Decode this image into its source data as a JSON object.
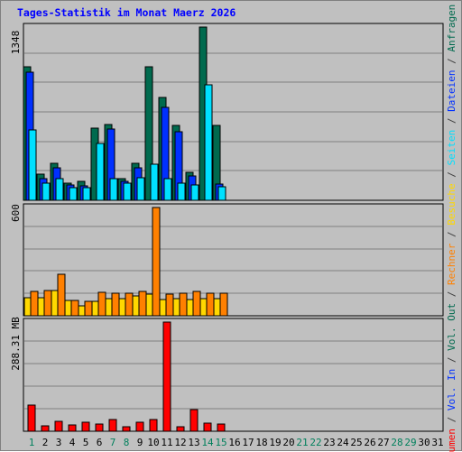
{
  "chart_data": {
    "type": "bar",
    "title": "Tages-Statistik im Monat Maerz 2026",
    "categories": [
      "1",
      "2",
      "3",
      "4",
      "5",
      "6",
      "7",
      "8",
      "9",
      "10",
      "11",
      "12",
      "13",
      "14",
      "15",
      "16",
      "17",
      "18",
      "19",
      "20",
      "21",
      "22",
      "23",
      "24",
      "25",
      "26",
      "27",
      "28",
      "29",
      "30",
      "31"
    ],
    "weekend_days": [
      "1",
      "7",
      "8",
      "14",
      "15",
      "21",
      "22",
      "28",
      "29"
    ],
    "panels": [
      {
        "name": "top",
        "max_label": "1348",
        "ylim": [
          0,
          1348
        ],
        "series": [
          {
            "name": "Anfragen",
            "color": "#006a4e",
            "values": [
              1040,
              205,
              285,
              135,
              145,
              565,
              590,
              165,
              285,
              1040,
              800,
              580,
              215,
              1348,
              580
            ]
          },
          {
            "name": "Dateien",
            "color": "#0030ff",
            "values": [
              1000,
              165,
              255,
              120,
              110,
              null,
              555,
              145,
              255,
              null,
              720,
              535,
              190,
              null,
              125
            ]
          },
          {
            "name": "Seiten",
            "color": "#00e0ff",
            "values": [
              550,
              130,
              165,
              100,
              100,
              445,
              165,
              130,
              175,
              280,
              170,
              130,
              120,
              900,
              105
            ]
          }
        ]
      },
      {
        "name": "middle",
        "max_label": "600",
        "ylim": [
          0,
          600
        ],
        "series": [
          {
            "name": "Besuche",
            "color": "#ffd800",
            "values": [
              100,
              100,
              140,
              85,
              55,
              80,
              95,
              95,
              110,
              120,
              90,
              95,
              90,
              95,
              95
            ]
          },
          {
            "name": "Rechner",
            "color": "#ff8000",
            "values": [
              135,
              140,
              230,
              85,
              80,
              130,
              125,
              125,
              135,
              600,
              120,
              125,
              135,
              125,
              125
            ]
          }
        ]
      },
      {
        "name": "bottom",
        "max_label": "288.31 MB",
        "ylim": [
          0,
          288.31
        ],
        "series": [
          {
            "name": "Volumen",
            "color": "#ff0000",
            "values": [
              68,
              15,
              26,
              16,
              23,
              20,
              31,
              13,
              23,
              30,
              288.31,
              12,
              58,
              22,
              20
            ]
          }
        ]
      }
    ],
    "right_legend": [
      {
        "text": "Volumen",
        "color": "#ff0000"
      },
      {
        "text": " / ",
        "color": "#404040"
      },
      {
        "text": "Vol. In",
        "color": "#0030ff"
      },
      {
        "text": " / ",
        "color": "#404040"
      },
      {
        "text": "Vol. Out",
        "color": "#006a4e"
      },
      {
        "text": " / ",
        "color": "#404040"
      },
      {
        "text": "Rechner",
        "color": "#ff8000"
      },
      {
        "text": " / ",
        "color": "#404040"
      },
      {
        "text": "Besuche",
        "color": "#ffd800"
      },
      {
        "text": " / ",
        "color": "#404040"
      },
      {
        "text": "Seiten",
        "color": "#00e0ff"
      },
      {
        "text": " / ",
        "color": "#404040"
      },
      {
        "text": "Dateien",
        "color": "#0030ff"
      },
      {
        "text": " / ",
        "color": "#404040"
      },
      {
        "text": "Anfragen",
        "color": "#006a4e"
      }
    ],
    "colors": {
      "background": "#c0c0c0",
      "title": "#0000ff",
      "weekday_label": "#000000",
      "weekend_label": "#00805c",
      "grid": "#808080"
    },
    "grid": true
  }
}
